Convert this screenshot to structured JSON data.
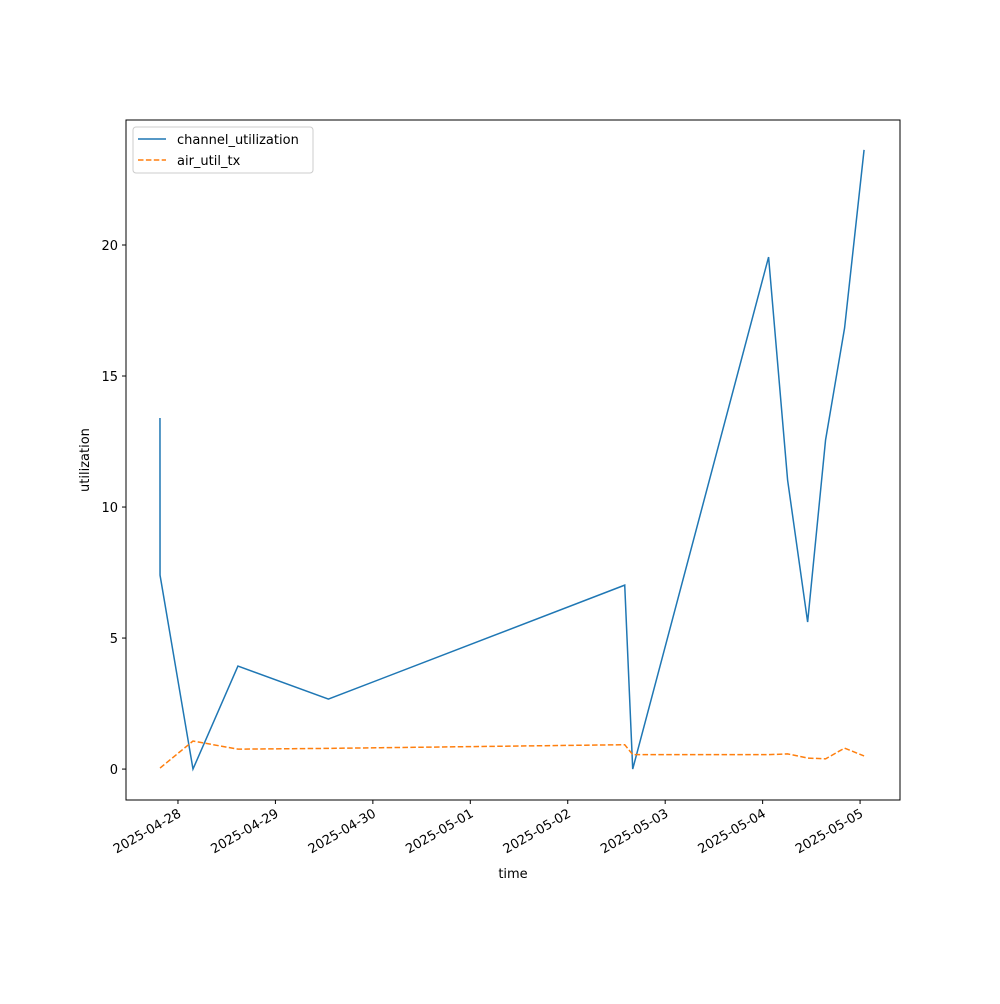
{
  "chart_data": {
    "type": "line",
    "x_label": "time",
    "y_label": "utilization",
    "x": [
      "2025-04-27T19:34",
      "2025-04-27T19:35",
      "2025-04-28T03:42",
      "2025-04-28T14:46",
      "2025-04-29T13:03",
      "2025-05-02T14:02",
      "2025-05-02T16:00",
      "2025-05-04T01:28",
      "2025-05-04T06:09",
      "2025-05-04T11:05",
      "2025-05-04T15:30",
      "2025-05-04T20:11",
      "2025-05-05T00:59"
    ],
    "series": [
      {
        "name": "channel_utilization",
        "color": "#1f77b4",
        "dash": false,
        "values": [
          13.4,
          7.4,
          0.0,
          3.93,
          2.67,
          7.02,
          0.0,
          19.54,
          11.03,
          5.61,
          12.56,
          16.83,
          23.63
        ]
      },
      {
        "name": "air_util_tx",
        "color": "#ff7f0e",
        "dash": true,
        "values": [
          null,
          0.04,
          1.07,
          0.76,
          0.79,
          0.93,
          0.55,
          0.55,
          0.58,
          0.42,
          0.39,
          0.8,
          0.5
        ]
      }
    ],
    "xlim": [
      "2025-04-27T11:12",
      "2025-05-05T09:50"
    ],
    "xticks": [
      "2025-04-28",
      "2025-04-29",
      "2025-04-30",
      "2025-05-01",
      "2025-05-02",
      "2025-05-03",
      "2025-05-04",
      "2025-05-05"
    ],
    "ylim": [
      -1.18,
      24.77
    ],
    "yticks": [
      0,
      5,
      10,
      15,
      20
    ],
    "grid": false,
    "legend": "upper left"
  }
}
